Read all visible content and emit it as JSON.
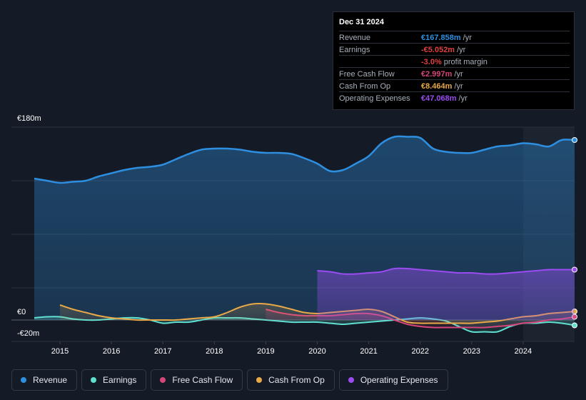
{
  "tooltip": {
    "date": "Dec 31 2024",
    "rows": [
      {
        "label": "Revenue",
        "value": "€167.858m",
        "unit": "/yr",
        "color": "#2e8fe0"
      },
      {
        "label": "Earnings",
        "value": "-€5.052m",
        "unit": "/yr",
        "color": "#e0403f"
      },
      {
        "label": "",
        "value": "-3.0%",
        "unit": "profit margin",
        "color": "#e0403f"
      },
      {
        "label": "Free Cash Flow",
        "value": "€2.997m",
        "unit": "/yr",
        "color": "#d6457a"
      },
      {
        "label": "Cash From Op",
        "value": "€8.464m",
        "unit": "/yr",
        "color": "#e9a948"
      },
      {
        "label": "Operating Expenses",
        "value": "€47.068m",
        "unit": "/yr",
        "color": "#9a4cf0"
      }
    ]
  },
  "legend": [
    {
      "label": "Revenue",
      "color": "#2e8fe0"
    },
    {
      "label": "Earnings",
      "color": "#5fe0d0"
    },
    {
      "label": "Free Cash Flow",
      "color": "#d6457a"
    },
    {
      "label": "Cash From Op",
      "color": "#e9a948"
    },
    {
      "label": "Operating Expenses",
      "color": "#9a4cf0"
    }
  ],
  "chart_data": {
    "type": "area",
    "title": "",
    "xlabel": "",
    "ylabel": "",
    "ylim": [
      -20,
      180
    ],
    "y_tick_labels": [
      {
        "value": 180,
        "label": "€180m"
      },
      {
        "value": 0,
        "label": "€0"
      },
      {
        "value": -20,
        "label": "-€20m"
      }
    ],
    "x_tick_labels": [
      "2015",
      "2016",
      "2017",
      "2018",
      "2019",
      "2020",
      "2021",
      "2022",
      "2023",
      "2024"
    ],
    "x_ticks": [
      2015,
      2016,
      2017,
      2018,
      2019,
      2020,
      2021,
      2022,
      2023,
      2024
    ],
    "xlim": [
      2014.5,
      2025.0
    ],
    "forecast_start": 2024.0,
    "series": [
      {
        "name": "Revenue",
        "color": "#2e8fe0",
        "fill": true,
        "x": [
          2014.5,
          2014.75,
          2015.0,
          2015.25,
          2015.5,
          2015.75,
          2016.0,
          2016.25,
          2016.5,
          2016.75,
          2017.0,
          2017.25,
          2017.5,
          2017.75,
          2018.0,
          2018.25,
          2018.5,
          2018.75,
          2019.0,
          2019.25,
          2019.5,
          2019.75,
          2020.0,
          2020.25,
          2020.5,
          2020.75,
          2021.0,
          2021.25,
          2021.5,
          2021.75,
          2022.0,
          2022.25,
          2022.5,
          2022.75,
          2023.0,
          2023.25,
          2023.5,
          2023.75,
          2024.0,
          2024.25,
          2024.5,
          2024.75,
          2025.0
        ],
        "values": [
          132,
          130,
          128,
          129,
          130,
          134,
          137,
          140,
          142,
          143,
          145,
          150,
          155,
          159,
          160,
          160,
          159,
          157,
          156,
          156,
          155,
          151,
          146,
          139,
          140,
          146,
          153,
          165,
          171,
          171,
          170,
          160,
          157,
          156,
          156,
          159,
          162,
          163,
          165,
          164,
          162,
          168,
          168
        ]
      },
      {
        "name": "Earnings",
        "color": "#5fe0d0",
        "fill": true,
        "x": [
          2014.5,
          2014.75,
          2015.0,
          2015.25,
          2015.5,
          2015.75,
          2016.0,
          2016.25,
          2016.5,
          2016.75,
          2017.0,
          2017.25,
          2017.5,
          2017.75,
          2018.0,
          2018.25,
          2018.5,
          2018.75,
          2019.0,
          2019.25,
          2019.5,
          2019.75,
          2020.0,
          2020.25,
          2020.5,
          2020.75,
          2021.0,
          2021.25,
          2021.5,
          2021.75,
          2022.0,
          2022.25,
          2022.5,
          2022.75,
          2023.0,
          2023.25,
          2023.5,
          2023.75,
          2024.0,
          2024.25,
          2024.5,
          2024.75,
          2025.0
        ],
        "values": [
          2,
          3,
          3,
          1,
          0,
          0,
          1,
          2,
          2,
          0,
          -3,
          -2,
          -2,
          0,
          2,
          2,
          2,
          1,
          0,
          -1,
          -2,
          -2,
          -2,
          -3,
          -4,
          -3,
          -2,
          -1,
          0,
          1,
          2,
          1,
          -1,
          -6,
          -11,
          -11,
          -11,
          -6,
          -3,
          -3,
          -2,
          -3,
          -5
        ]
      },
      {
        "name": "Free Cash Flow",
        "color": "#d6457a",
        "fill": true,
        "x": [
          2019.0,
          2019.25,
          2019.5,
          2019.75,
          2020.0,
          2020.25,
          2020.5,
          2020.75,
          2021.0,
          2021.25,
          2021.5,
          2021.75,
          2022.0,
          2022.25,
          2022.5,
          2022.75,
          2023.0,
          2023.25,
          2023.5,
          2023.75,
          2024.0,
          2024.25,
          2024.5,
          2024.75,
          2025.0
        ],
        "values": [
          10,
          7,
          5,
          4,
          4,
          4,
          5,
          6,
          6,
          4,
          0,
          -4,
          -6,
          -7,
          -7,
          -7,
          -7,
          -7,
          -6,
          -5,
          -3,
          -2,
          0,
          1,
          3
        ]
      },
      {
        "name": "Cash From Op",
        "color": "#e9a948",
        "fill": true,
        "x": [
          2015.0,
          2015.25,
          2015.5,
          2015.75,
          2016.0,
          2016.25,
          2016.5,
          2016.75,
          2017.0,
          2017.25,
          2017.5,
          2017.75,
          2018.0,
          2018.25,
          2018.5,
          2018.75,
          2019.0,
          2019.25,
          2019.5,
          2019.75,
          2020.0,
          2020.25,
          2020.5,
          2020.75,
          2021.0,
          2021.25,
          2021.5,
          2021.75,
          2022.0,
          2022.25,
          2022.5,
          2022.75,
          2023.0,
          2023.25,
          2023.5,
          2023.75,
          2024.0,
          2024.25,
          2024.5,
          2024.75,
          2025.0
        ],
        "values": [
          14,
          10,
          7,
          4,
          2,
          1,
          0,
          0,
          0,
          0,
          1,
          2,
          3,
          7,
          12,
          15,
          15,
          13,
          10,
          7,
          6,
          7,
          8,
          9,
          10,
          8,
          3,
          -2,
          -3,
          -3,
          -3,
          -3,
          -3,
          -2,
          -1,
          1,
          3,
          4,
          6,
          7,
          8
        ]
      },
      {
        "name": "Operating Expenses",
        "color": "#9a4cf0",
        "fill": true,
        "x": [
          2020.0,
          2020.25,
          2020.5,
          2020.75,
          2021.0,
          2021.25,
          2021.5,
          2021.75,
          2022.0,
          2022.25,
          2022.5,
          2022.75,
          2023.0,
          2023.25,
          2023.5,
          2023.75,
          2024.0,
          2024.25,
          2024.5,
          2024.75,
          2025.0
        ],
        "values": [
          46,
          45,
          43,
          43,
          44,
          45,
          48,
          48,
          47,
          46,
          45,
          44,
          44,
          43,
          43,
          44,
          45,
          46,
          47,
          47,
          47
        ]
      }
    ]
  }
}
